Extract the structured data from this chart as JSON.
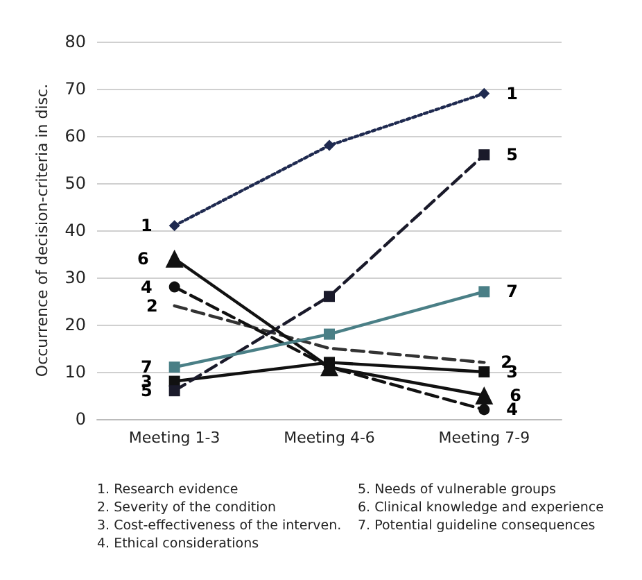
{
  "chart_data": {
    "type": "line",
    "ylabel": "Occurrence of decision-criteria in disc.",
    "categories": [
      "Meeting 1-3",
      "Meeting 4-6",
      "Meeting 7-9"
    ],
    "ylim": [
      0,
      80
    ],
    "yticks": [
      0,
      10,
      20,
      30,
      40,
      50,
      60,
      70,
      80
    ],
    "grid": "y",
    "legend": false,
    "series": [
      {
        "name": "1",
        "color": "#1f2a50",
        "values": [
          41,
          58,
          69
        ],
        "line_style": "dotted",
        "marker": "diamond"
      },
      {
        "name": "2",
        "color": "#333333",
        "values": [
          24,
          15,
          12
        ],
        "line_style": "dashed",
        "marker": "none"
      },
      {
        "name": "3",
        "color": "#111111",
        "values": [
          8,
          12,
          10
        ],
        "line_style": "solid",
        "marker": "square"
      },
      {
        "name": "4",
        "color": "#111111",
        "values": [
          28,
          11,
          2
        ],
        "line_style": "dashed",
        "marker": "circle"
      },
      {
        "name": "5",
        "color": "#1a1a2a",
        "values": [
          6,
          26,
          56
        ],
        "line_style": "dashed",
        "marker": "square"
      },
      {
        "name": "6",
        "color": "#111111",
        "values": [
          34,
          11,
          5
        ],
        "line_style": "solid",
        "marker": "triangle"
      },
      {
        "name": "7",
        "color": "#4a7f86",
        "values": [
          11,
          18,
          27
        ],
        "line_style": "solid",
        "marker": "square"
      }
    ],
    "annotations": [
      "1. Research evidence",
      "2. Severity of the condition",
      "3. Cost-effectiveness of the interven.",
      "4. Ethical considerations",
      "5. Needs of vulnerable groups",
      "6. Clinical knowledge and experience",
      "7. Potential guideline consequences"
    ]
  }
}
